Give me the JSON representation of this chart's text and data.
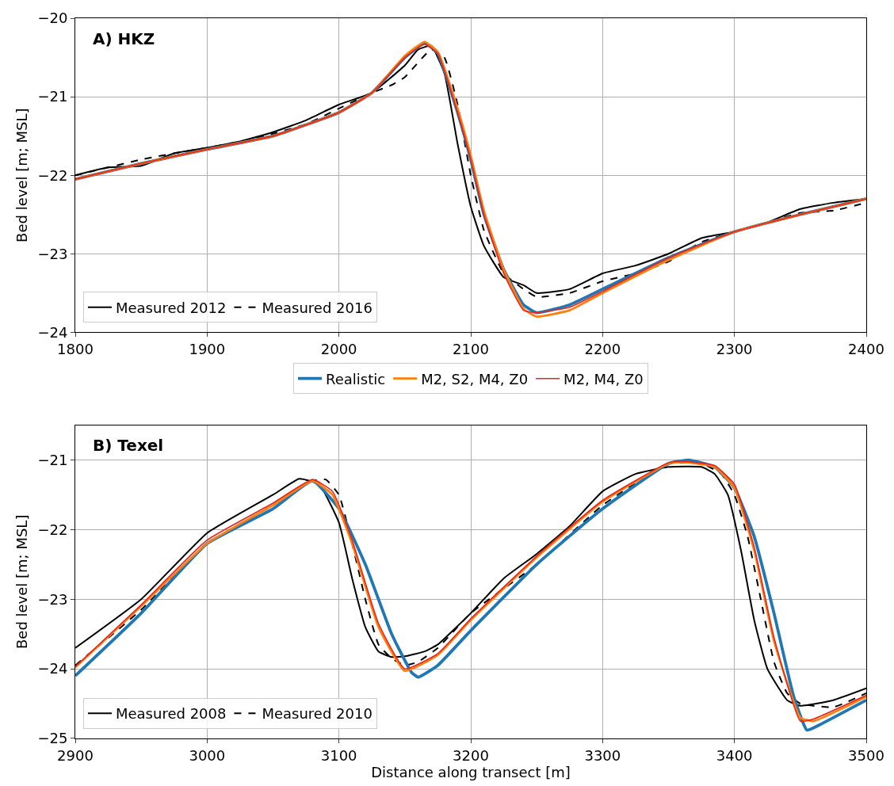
{
  "chart_data": [
    {
      "type": "line",
      "title": "A) HKZ",
      "ylabel": "Bed level [m; MSL]",
      "xlim": [
        1800,
        2400
      ],
      "xticks": [
        1800,
        1900,
        2000,
        2100,
        2200,
        2300,
        2400
      ],
      "ylim": [
        -24,
        -20
      ],
      "yticks": [
        -24,
        -23,
        -22,
        -21,
        -20
      ],
      "grid": true,
      "legend": "bottom left",
      "series": [
        {
          "name": "Measured 2012",
          "color": "#000000",
          "line_style": "solid",
          "x": [
            1800,
            1825,
            1850,
            1875,
            1900,
            1925,
            1950,
            1975,
            2000,
            2025,
            2050,
            2060,
            2070,
            2080,
            2090,
            2100,
            2110,
            2125,
            2140,
            2150,
            2175,
            2200,
            2225,
            2250,
            2275,
            2300,
            2325,
            2350,
            2375,
            2400
          ],
          "values": [
            -22.0,
            -21.9,
            -21.88,
            -21.72,
            -21.65,
            -21.57,
            -21.45,
            -21.3,
            -21.1,
            -20.95,
            -20.6,
            -20.4,
            -20.35,
            -20.7,
            -21.6,
            -22.4,
            -22.9,
            -23.3,
            -23.4,
            -23.5,
            -23.45,
            -23.25,
            -23.15,
            -23.0,
            -22.8,
            -22.72,
            -22.6,
            -22.43,
            -22.35,
            -22.3
          ]
        },
        {
          "name": "Measured 2016",
          "color": "#000000",
          "line_style": "dashed",
          "x": [
            1800,
            1825,
            1850,
            1875,
            1900,
            1925,
            1950,
            1975,
            2000,
            2025,
            2040,
            2050,
            2070,
            2080,
            2090,
            2100,
            2110,
            2125,
            2140,
            2150,
            2175,
            2200,
            2225,
            2250,
            2275,
            2300,
            2325,
            2350,
            2375,
            2400
          ],
          "values": [
            -22.0,
            -21.9,
            -21.8,
            -21.72,
            -21.65,
            -21.57,
            -21.47,
            -21.35,
            -21.15,
            -20.95,
            -20.85,
            -20.75,
            -20.4,
            -20.5,
            -21.1,
            -22.0,
            -22.7,
            -23.25,
            -23.45,
            -23.55,
            -23.5,
            -23.35,
            -23.25,
            -23.1,
            -22.85,
            -22.72,
            -22.6,
            -22.48,
            -22.45,
            -22.35
          ]
        },
        {
          "name": "Realistic",
          "color": "#1f77b4",
          "line_style": "solid",
          "x": [
            1800,
            1850,
            1900,
            1950,
            2000,
            2025,
            2050,
            2065,
            2075,
            2090,
            2100,
            2110,
            2125,
            2140,
            2150,
            2175,
            2200,
            2250,
            2300,
            2350,
            2400
          ],
          "values": [
            -22.05,
            -21.85,
            -21.67,
            -21.5,
            -21.2,
            -20.95,
            -20.5,
            -20.32,
            -20.45,
            -21.2,
            -21.8,
            -22.5,
            -23.2,
            -23.65,
            -23.75,
            -23.65,
            -23.45,
            -23.05,
            -22.72,
            -22.5,
            -22.3
          ]
        },
        {
          "name": "M2, S2, M4, Z0",
          "color": "#ff7f0e",
          "line_style": "solid",
          "x": [
            1800,
            1850,
            1900,
            1950,
            2000,
            2025,
            2050,
            2065,
            2075,
            2090,
            2100,
            2110,
            2125,
            2140,
            2150,
            2175,
            2200,
            2250,
            2300,
            2350,
            2400
          ],
          "values": [
            -22.05,
            -21.85,
            -21.67,
            -21.5,
            -21.2,
            -20.95,
            -20.48,
            -20.3,
            -20.43,
            -21.15,
            -21.75,
            -22.45,
            -23.2,
            -23.7,
            -23.8,
            -23.72,
            -23.5,
            -23.08,
            -22.72,
            -22.5,
            -22.3
          ]
        },
        {
          "name": "M2, M4, Z0",
          "color": "#e6261f",
          "line_style": "solid",
          "x": [
            1800,
            1850,
            1900,
            1950,
            2000,
            2025,
            2050,
            2065,
            2075,
            2090,
            2100,
            2110,
            2125,
            2140,
            2150,
            2175,
            2200,
            2250,
            2300,
            2350,
            2400
          ],
          "values": [
            -22.05,
            -21.85,
            -21.67,
            -21.5,
            -21.2,
            -20.95,
            -20.5,
            -20.33,
            -20.45,
            -21.2,
            -21.8,
            -22.5,
            -23.25,
            -23.72,
            -23.75,
            -23.68,
            -23.48,
            -23.05,
            -22.72,
            -22.5,
            -22.3
          ]
        }
      ]
    },
    {
      "type": "line",
      "title": "B) Texel",
      "xlabel": "Distance along transect [m]",
      "ylabel": "Bed level [m; MSL]",
      "xlim": [
        2900,
        3500
      ],
      "xticks": [
        2900,
        3000,
        3100,
        3200,
        3300,
        3400,
        3500
      ],
      "ylim": [
        -25,
        -20.5
      ],
      "yticks": [
        -25,
        -24,
        -23,
        -22,
        -21
      ],
      "grid": true,
      "legend": "bottom left",
      "series": [
        {
          "name": "Measured 2008",
          "color": "#000000",
          "line_style": "solid",
          "x": [
            2900,
            2950,
            3000,
            3050,
            3070,
            3085,
            3100,
            3110,
            3120,
            3130,
            3140,
            3150,
            3165,
            3175,
            3200,
            3225,
            3250,
            3275,
            3300,
            3325,
            3350,
            3375,
            3385,
            3395,
            3405,
            3415,
            3425,
            3440,
            3450,
            3475,
            3500
          ],
          "values": [
            -23.7,
            -23.0,
            -22.05,
            -21.5,
            -21.27,
            -21.35,
            -21.9,
            -22.7,
            -23.4,
            -23.75,
            -23.83,
            -23.82,
            -23.75,
            -23.65,
            -23.2,
            -22.7,
            -22.35,
            -21.95,
            -21.45,
            -21.2,
            -21.1,
            -21.1,
            -21.2,
            -21.5,
            -22.3,
            -23.3,
            -24.0,
            -24.45,
            -24.53,
            -24.45,
            -24.28
          ]
        },
        {
          "name": "Measured 2010",
          "color": "#000000",
          "line_style": "dashed",
          "x": [
            2900,
            2950,
            3000,
            3050,
            3080,
            3090,
            3100,
            3110,
            3120,
            3130,
            3140,
            3150,
            3160,
            3175,
            3200,
            3250,
            3300,
            3350,
            3375,
            3390,
            3400,
            3410,
            3420,
            3430,
            3440,
            3450,
            3475,
            3500
          ],
          "values": [
            -23.95,
            -23.15,
            -22.2,
            -21.65,
            -21.3,
            -21.28,
            -21.5,
            -22.2,
            -23.0,
            -23.65,
            -23.85,
            -23.95,
            -23.9,
            -23.7,
            -23.2,
            -22.5,
            -21.65,
            -21.05,
            -21.05,
            -21.2,
            -21.5,
            -22.1,
            -23.0,
            -23.9,
            -24.35,
            -24.5,
            -24.55,
            -24.35
          ]
        },
        {
          "color": "#1f77b4",
          "line_style": "solid",
          "x": [
            2900,
            2950,
            3000,
            3050,
            3080,
            3100,
            3120,
            3140,
            3155,
            3160,
            3175,
            3200,
            3250,
            3300,
            3350,
            3365,
            3385,
            3400,
            3415,
            3430,
            3445,
            3455,
            3465,
            3500
          ],
          "values": [
            -24.1,
            -23.2,
            -22.2,
            -21.7,
            -21.3,
            -21.7,
            -22.5,
            -23.5,
            -24.05,
            -24.12,
            -23.95,
            -23.45,
            -22.5,
            -21.7,
            -21.05,
            -21.0,
            -21.1,
            -21.4,
            -22.1,
            -23.2,
            -24.4,
            -24.88,
            -24.8,
            -24.45
          ]
        },
        {
          "color": "#ff7f0e",
          "line_style": "solid",
          "x": [
            2900,
            2950,
            3000,
            3050,
            3080,
            3095,
            3110,
            3130,
            3150,
            3175,
            3200,
            3250,
            3300,
            3350,
            3360,
            3385,
            3400,
            3415,
            3430,
            3450,
            3460,
            3500
          ],
          "values": [
            -23.98,
            -23.1,
            -22.2,
            -21.65,
            -21.3,
            -21.5,
            -22.2,
            -23.4,
            -24.03,
            -23.8,
            -23.3,
            -22.4,
            -21.6,
            -21.05,
            -21.03,
            -21.1,
            -21.4,
            -22.3,
            -23.6,
            -24.7,
            -24.75,
            -24.4
          ]
        },
        {
          "color": "#e6261f",
          "line_style": "solid",
          "x": [
            2900,
            2950,
            3000,
            3050,
            3080,
            3095,
            3110,
            3130,
            3150,
            3175,
            3200,
            3250,
            3300,
            3350,
            3360,
            3385,
            3400,
            3415,
            3430,
            3450,
            3460,
            3500
          ],
          "values": [
            -23.97,
            -23.08,
            -22.15,
            -21.62,
            -21.28,
            -21.45,
            -22.15,
            -23.35,
            -24.0,
            -23.78,
            -23.28,
            -22.38,
            -21.58,
            -21.04,
            -21.02,
            -21.08,
            -21.35,
            -22.25,
            -23.55,
            -24.75,
            -24.72,
            -24.38
          ]
        }
      ]
    }
  ]
}
